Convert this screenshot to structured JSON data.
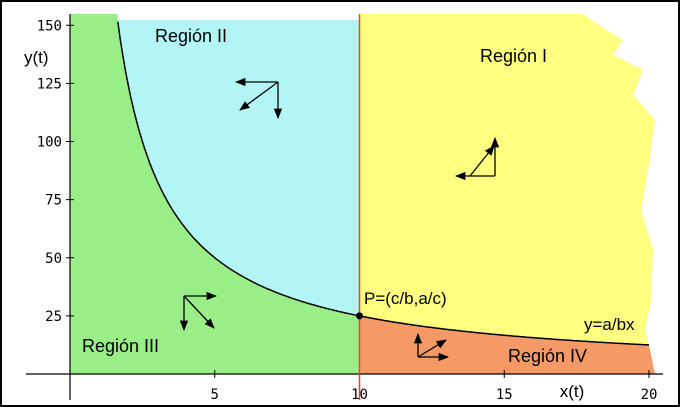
{
  "chart_data": {
    "type": "phase-plane",
    "xlabel": "x(t)",
    "ylabel": "y(t)",
    "xlim": [
      0,
      20.5
    ],
    "ylim": [
      -2,
      153
    ],
    "x_ticks": [
      5,
      10,
      15,
      20
    ],
    "y_ticks": [
      25,
      50,
      75,
      100,
      125,
      150
    ],
    "vertical_line": {
      "x": 10,
      "color": "#e8403a"
    },
    "curve": {
      "label": "y=a/bx",
      "k": 250,
      "x_range": [
        1.65,
        20
      ]
    },
    "equilibrium": {
      "label": "P=(c/b,a/c)",
      "x": 10,
      "y": 25
    },
    "regions": [
      {
        "name": "Región I",
        "color": "#ffff80",
        "arrows": [
          "right",
          "up"
        ]
      },
      {
        "name": "Región II",
        "color": "#b3f5f5",
        "arrows": [
          "left",
          "down"
        ]
      },
      {
        "name": "Región III",
        "color": "#99ee88",
        "arrows": [
          "right",
          "down"
        ]
      },
      {
        "name": "Región IV",
        "color": "#f59966",
        "arrows": [
          "right",
          "up"
        ]
      }
    ]
  }
}
